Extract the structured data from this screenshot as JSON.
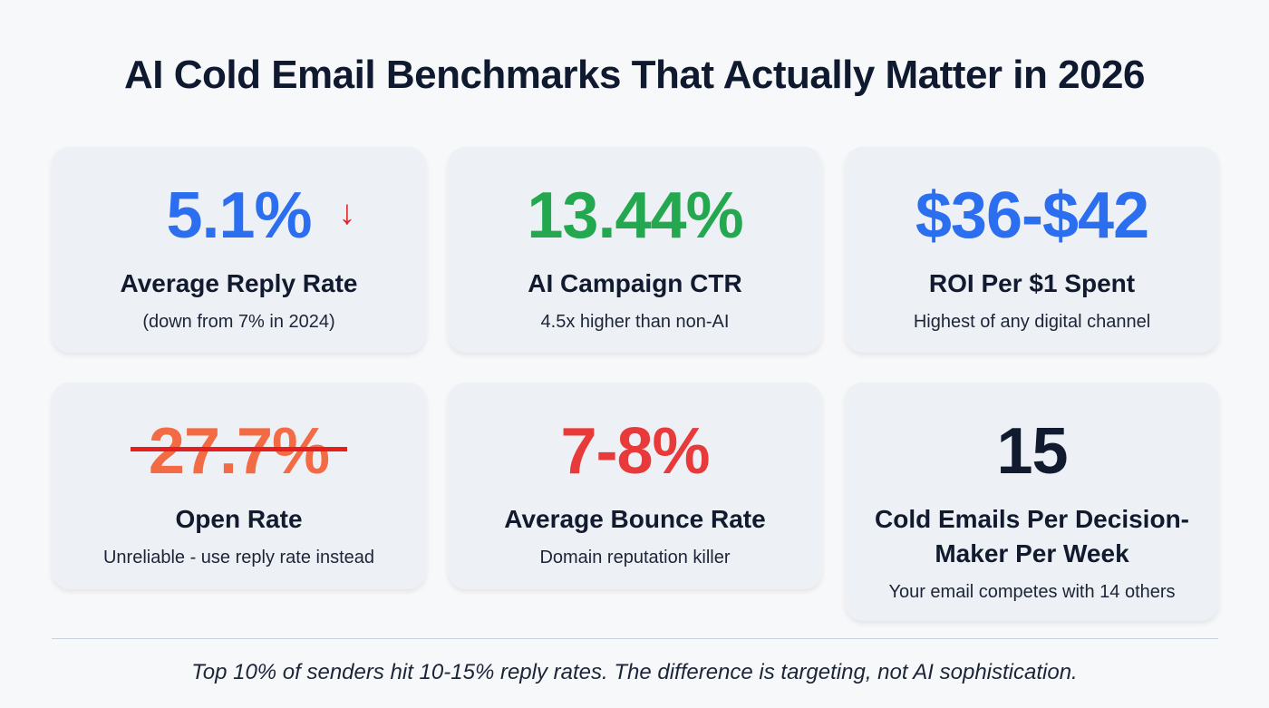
{
  "title": "AI Cold Email Benchmarks That Actually Matter in 2026",
  "colors": {
    "blue": "#2b6ff0",
    "green": "#23a84f",
    "orange": "#f26b45",
    "red": "#e8393b",
    "navy": "#111a2e",
    "arrow_red": "#e0262b"
  },
  "cards": [
    {
      "value": "5.1%",
      "label": "Average Reply Rate",
      "sub": "(down from 7% in 2024)",
      "icon": "arrow-down-icon"
    },
    {
      "value": "13.44%",
      "label": "AI Campaign CTR",
      "sub": "4.5x higher than non-AI"
    },
    {
      "value": "$36-$42",
      "label": "ROI Per $1 Spent",
      "sub": "Highest of any digital channel"
    },
    {
      "value": "27.7%",
      "label": "Open Rate",
      "sub": "Unreliable - use reply rate instead",
      "struck_through": true
    },
    {
      "value": "7-8%",
      "label": "Average Bounce Rate",
      "sub": "Domain reputation killer"
    },
    {
      "value": "15",
      "label": "Cold Emails Per Decision-Maker Per Week",
      "sub": "Your email competes with 14 others"
    }
  ],
  "footer": "Top 10% of senders hit 10-15% reply rates. The difference is targeting, not AI sophistication."
}
